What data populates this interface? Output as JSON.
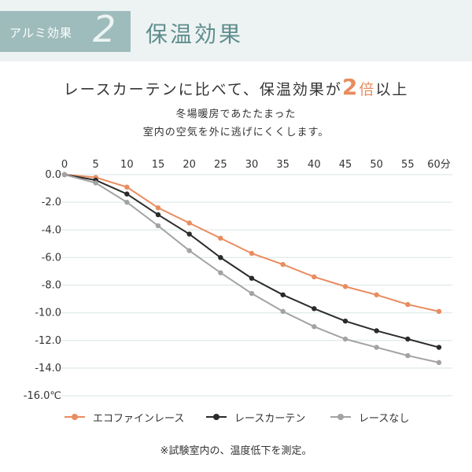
{
  "header": {
    "tag_label": "アルミ効果",
    "tag_number": "2",
    "title": "保温効果"
  },
  "headline": {
    "prefix": "レースカーテンに比べて、保温効果が",
    "number": "2",
    "unit": "倍",
    "suffix": "以上"
  },
  "subtext": {
    "line1": "冬場暖房であたたまった",
    "line2": "室内の空気を外に逃げにくくします。"
  },
  "footnote": "※試験室内の、温度低下を測定。",
  "colors": {
    "accent_orange": "#e98c5f",
    "dark": "#2b2b2b",
    "gray": "#a3a3a3",
    "teal": "#9fbcbc",
    "grid": "#dfeaea"
  },
  "chart_data": {
    "type": "line",
    "x": [
      0,
      5,
      10,
      15,
      20,
      25,
      30,
      35,
      40,
      45,
      50,
      55,
      60
    ],
    "x_tick_labels": [
      "0",
      "5",
      "10",
      "15",
      "20",
      "25",
      "30",
      "35",
      "40",
      "45",
      "50",
      "55",
      "60分"
    ],
    "y_tick_values": [
      0,
      -2,
      -4,
      -6,
      -8,
      -10,
      -12,
      -14,
      -16
    ],
    "y_tick_labels": [
      "0.0",
      "-2.0",
      "-4.0",
      "-6.0",
      "-8.0",
      "-10.0",
      "-12.0",
      "-14.0",
      "-16.0℃"
    ],
    "ylim": [
      -16,
      0
    ],
    "xlim": [
      0,
      60
    ],
    "grid": true,
    "legend_position": "bottom",
    "series": [
      {
        "name": "エコファインレース",
        "color": "#e98c5f",
        "values": [
          0,
          -0.2,
          -0.9,
          -2.4,
          -3.5,
          -4.6,
          -5.7,
          -6.5,
          -7.4,
          -8.1,
          -8.7,
          -9.4,
          -9.9
        ]
      },
      {
        "name": "レースカーテン",
        "color": "#2b2b2b",
        "values": [
          0,
          -0.4,
          -1.4,
          -2.9,
          -4.3,
          -6.0,
          -7.5,
          -8.7,
          -9.7,
          -10.6,
          -11.3,
          -11.9,
          -12.5
        ]
      },
      {
        "name": "レースなし",
        "color": "#a3a3a3",
        "values": [
          0,
          -0.6,
          -2.0,
          -3.7,
          -5.5,
          -7.1,
          -8.6,
          -9.9,
          -11.0,
          -11.9,
          -12.5,
          -13.1,
          -13.6
        ]
      }
    ]
  }
}
